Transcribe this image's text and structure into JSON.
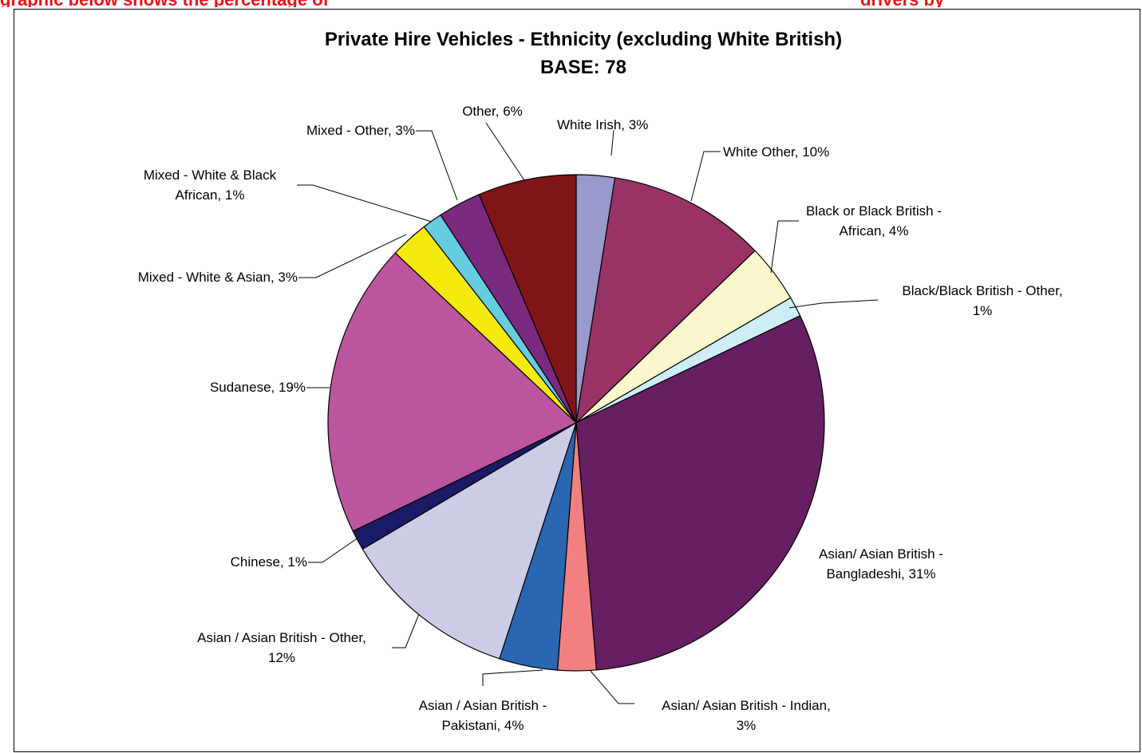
{
  "banner": {
    "left_text": "graphic below shows the percentage of",
    "right_text": "drivers by",
    "underlined_text": ""
  },
  "chart_data": {
    "type": "pie",
    "title": "Private Hire Vehicles - Ethnicity (excluding White British)",
    "subtitle": "BASE: 78",
    "slices": [
      {
        "label": "White Irish, 3%",
        "value": 2.5,
        "color": "#9999cc"
      },
      {
        "label": "White Other, 10%",
        "value": 10.3,
        "color": "#993366"
      },
      {
        "label": "Black or Black British - African, 4%",
        "value": 3.8,
        "color": "#fbf7cc"
      },
      {
        "label": "Black/Black British - Other, 1%",
        "value": 1.3,
        "color": "#cdeef4"
      },
      {
        "label": "Asian/ Asian British - Bangladeshi, 31%",
        "value": 30.8,
        "color": "#661f62"
      },
      {
        "label": "Asian/ Asian British - Indian, 3%",
        "value": 2.5,
        "color": "#f28080"
      },
      {
        "label": "Asian / Asian British - Pakistani, 4%",
        "value": 3.8,
        "color": "#2b66b3"
      },
      {
        "label": "Asian / Asian British - Other, 12%",
        "value": 11.5,
        "color": "#cccce6"
      },
      {
        "label": "Chinese, 1%",
        "value": 1.3,
        "color": "#1a1a66"
      },
      {
        "label": "Sudanese, 19%",
        "value": 19.2,
        "color": "#ba559e"
      },
      {
        "label": "Mixed - White & Asian, 3%",
        "value": 2.5,
        "color": "#f5ea0d"
      },
      {
        "label": "Mixed - White & Black African, 1%",
        "value": 1.3,
        "color": "#66cce0"
      },
      {
        "label": "Mixed - Other, 3%",
        "value": 2.8,
        "color": "#7a2a7e"
      },
      {
        "label": "Other, 6%",
        "value": 6.4,
        "color": "#801517"
      }
    ]
  }
}
